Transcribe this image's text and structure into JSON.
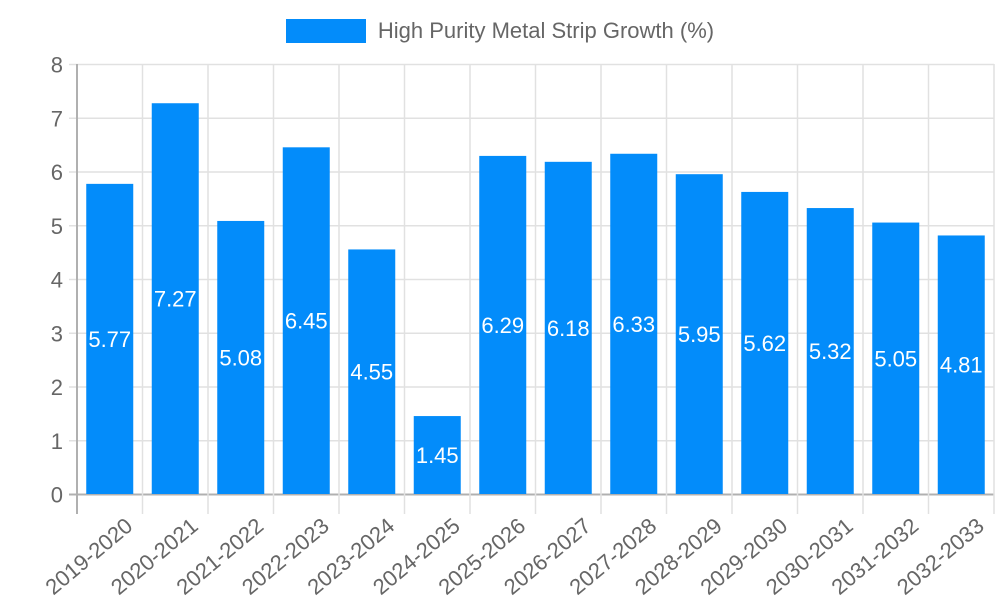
{
  "colors": {
    "bar": "#038cfa",
    "grid": "#e1e1e1",
    "axis": "#b0b0b0",
    "tick_text": "#666666",
    "label_text": "#ffffff"
  },
  "legend": {
    "label": "High Purity Metal Strip Growth (%)"
  },
  "chart_data": {
    "type": "bar",
    "title": "",
    "xlabel": "",
    "ylabel": "",
    "ylim": [
      0,
      8
    ],
    "yticks": [
      0,
      1,
      2,
      3,
      4,
      5,
      6,
      7,
      8
    ],
    "grid": true,
    "legend_position": "top",
    "categories": [
      "2019-2020",
      "2020-2021",
      "2021-2022",
      "2022-2023",
      "2023-2024",
      "2024-2025",
      "2025-2026",
      "2026-2027",
      "2027-2028",
      "2028-2029",
      "2029-2030",
      "2030-2031",
      "2031-2032",
      "2032-2033"
    ],
    "series": [
      {
        "name": "High Purity Metal Strip Growth (%)",
        "values": [
          5.77,
          7.27,
          5.08,
          6.45,
          4.55,
          1.45,
          6.29,
          6.18,
          6.33,
          5.95,
          5.62,
          5.32,
          5.05,
          4.81
        ]
      }
    ]
  }
}
